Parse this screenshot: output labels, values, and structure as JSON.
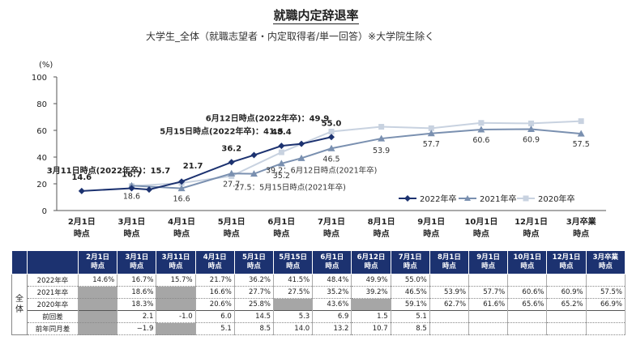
{
  "title": "就職内定辞退率",
  "subtitle": "大学生_全体（就職志望者・内定取得者/単一回答）※大学院生除く",
  "chart_data": {
    "type": "line",
    "y_unit": "(%)",
    "ylim": [
      0,
      100
    ],
    "yticks": [
      "0",
      "20",
      "40",
      "60",
      "80",
      "100"
    ],
    "categories": [
      [
        "2月1日",
        "時点"
      ],
      [
        "3月1日",
        "時点"
      ],
      [
        "4月1日",
        "時点"
      ],
      [
        "5月1日",
        "時点"
      ],
      [
        "6月1日",
        "時点"
      ],
      [
        "7月1日",
        "時点"
      ],
      [
        "8月1日",
        "時点"
      ],
      [
        "9月1日",
        "時点"
      ],
      [
        "10月1日",
        "時点"
      ],
      [
        "12月1日",
        "時点"
      ],
      [
        "3月卒業",
        "時点"
      ]
    ],
    "series": [
      {
        "name": "2022年卒",
        "color": "#1c3270",
        "marker": "diamond",
        "points": [
          [
            0,
            14.6
          ],
          [
            1,
            16.7
          ],
          [
            1.35,
            15.7
          ],
          [
            2,
            21.7
          ],
          [
            3,
            36.2
          ],
          [
            3.45,
            41.5
          ],
          [
            4,
            48.4
          ],
          [
            4.4,
            49.9
          ],
          [
            5,
            55.0
          ]
        ]
      },
      {
        "name": "2021年卒",
        "color": "#7a90b0",
        "marker": "triangle",
        "points": [
          [
            1,
            18.6
          ],
          [
            2,
            16.6
          ],
          [
            3,
            27.7
          ],
          [
            3.45,
            27.5
          ],
          [
            4,
            35.2
          ],
          [
            4.4,
            39.2
          ],
          [
            5,
            46.5
          ],
          [
            6,
            53.9
          ],
          [
            7,
            57.7
          ],
          [
            8,
            60.6
          ],
          [
            9,
            60.9
          ],
          [
            10,
            57.5
          ]
        ]
      },
      {
        "name": "2020年卒",
        "color": "#c8d2e0",
        "marker": "square",
        "points": [
          [
            1,
            18.3
          ],
          [
            2,
            20.6
          ],
          [
            3,
            25.8
          ],
          [
            4,
            43.6
          ],
          [
            5,
            59.1
          ],
          [
            6,
            62.7
          ],
          [
            7,
            61.6
          ],
          [
            8,
            65.6
          ],
          [
            9,
            65.2
          ],
          [
            10,
            66.9
          ]
        ]
      }
    ],
    "annotations": [
      {
        "text": "14.6",
        "series": 0,
        "point": 0
      },
      {
        "text": "16.7",
        "series": 0,
        "point": 1
      },
      {
        "text": "3月11日時点(2022年卒)：15.7",
        "series": 0,
        "point": 2
      },
      {
        "text": "21.7",
        "series": 0,
        "point": 3
      },
      {
        "text": "36.2",
        "series": 0,
        "point": 4
      },
      {
        "text": "5月15日時点(2022年卒)：41.5",
        "series": 0,
        "point": 5
      },
      {
        "text": "48.4",
        "series": 0,
        "point": 6
      },
      {
        "text": "6月12日時点(2022年卒)：49.9",
        "series": 0,
        "point": 7
      },
      {
        "text": "55.0",
        "series": 0,
        "point": 8
      },
      {
        "text": "18.6",
        "series": 1,
        "point": 0
      },
      {
        "text": "16.6",
        "series": 1,
        "point": 1
      },
      {
        "text": "27.7",
        "series": 1,
        "point": 2
      },
      {
        "text": "27.5：5月15日時点(2021年卒)",
        "series": 1,
        "point": 3
      },
      {
        "text": "35.2",
        "series": 1,
        "point": 4
      },
      {
        "text": "39.2：6月12日時点(2021年卒)",
        "series": 1,
        "point": 5
      },
      {
        "text": "46.5",
        "series": 1,
        "point": 6
      },
      {
        "text": "53.9",
        "series": 1,
        "point": 7
      },
      {
        "text": "57.7",
        "series": 1,
        "point": 8
      },
      {
        "text": "60.6",
        "series": 1,
        "point": 9
      },
      {
        "text": "60.9",
        "series": 1,
        "point": 10
      },
      {
        "text": "57.5",
        "series": 1,
        "point": 11
      }
    ],
    "legend_position": "bottom-right"
  },
  "table": {
    "columns": [
      "2月1日\n時点",
      "3月1日\n時点",
      "3月11日\n時点",
      "4月1日\n時点",
      "5月1日\n時点",
      "5月15日\n時点",
      "6月1日\n時点",
      "6月12日\n時点",
      "7月1日\n時点",
      "8月1日\n時点",
      "9月1日\n時点",
      "10月1日\n時点",
      "12月1日\n時点",
      "3月卒業\n時点"
    ],
    "group_label": "全\n体",
    "rows": [
      {
        "label": "2022年卒",
        "cells": [
          "14.6%",
          "16.7%",
          "15.7%",
          "21.7%",
          "36.2%",
          "41.5%",
          "48.4%",
          "49.9%",
          "55.0%",
          "",
          "",
          "",
          "",
          ""
        ],
        "gray": []
      },
      {
        "label": "2021年卒",
        "cells": [
          "",
          "18.6%",
          "",
          "16.6%",
          "27.7%",
          "27.5%",
          "35.2%",
          "39.2%",
          "46.5%",
          "53.9%",
          "57.7%",
          "60.6%",
          "60.9%",
          "57.5%"
        ],
        "gray": [
          0,
          2
        ]
      },
      {
        "label": "2020年卒",
        "cells": [
          "",
          "18.3%",
          "",
          "20.6%",
          "25.8%",
          "",
          "43.6%",
          "",
          "59.1%",
          "62.7%",
          "61.6%",
          "65.6%",
          "65.2%",
          "66.9%"
        ],
        "gray": [
          0,
          2,
          5,
          7
        ]
      },
      {
        "label": "前回差",
        "cells": [
          "",
          "2.1",
          "-1.0",
          "6.0",
          "14.5",
          "5.3",
          "6.9",
          "1.5",
          "5.1",
          "",
          "",
          "",
          "",
          ""
        ],
        "gray": [
          0
        ]
      },
      {
        "label": "前年同月差",
        "cells": [
          "",
          "−1.9",
          "",
          "5.1",
          "8.5",
          "14.0",
          "13.2",
          "10.7",
          "8.5",
          "",
          "",
          "",
          "",
          ""
        ],
        "gray": [
          0,
          2
        ]
      }
    ]
  }
}
